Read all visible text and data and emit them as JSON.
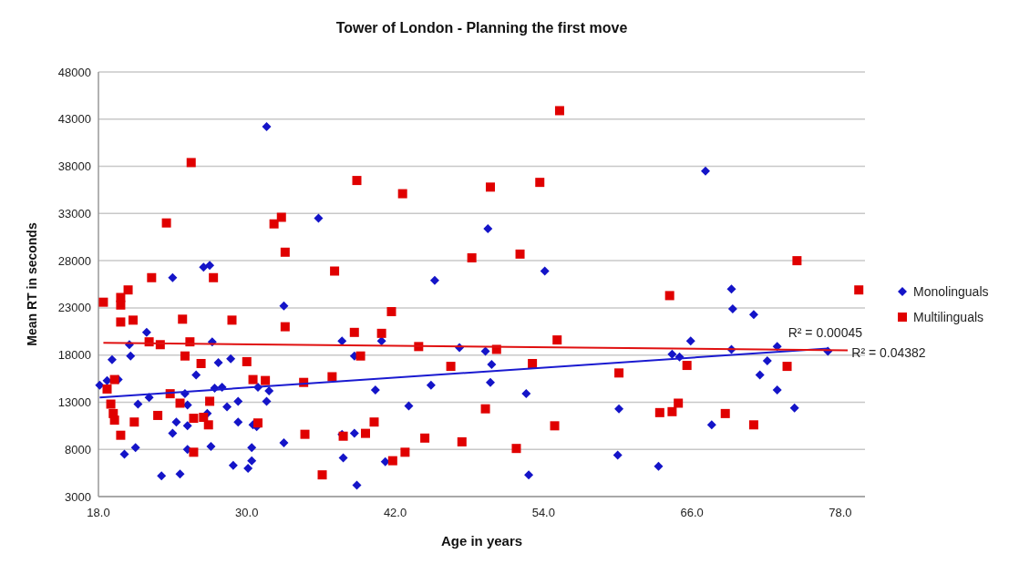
{
  "chart_data": {
    "type": "scatter",
    "title": "Tower of London - Planning the first move",
    "xlabel": "Age in years",
    "ylabel": "Mean RT in seconds",
    "xlim": [
      18,
      80
    ],
    "xticks": [
      {
        "value": 18,
        "label": "18.0"
      },
      {
        "value": 30,
        "label": "30.0"
      },
      {
        "value": 42,
        "label": "42.0"
      },
      {
        "value": 54,
        "label": "54.0"
      },
      {
        "value": 66,
        "label": "66.0"
      },
      {
        "value": 78,
        "label": "78.0"
      }
    ],
    "ylim": [
      3000,
      48000
    ],
    "yticks": [
      3000,
      8000,
      13000,
      18000,
      23000,
      28000,
      33000,
      38000,
      43000,
      48000
    ],
    "grid": "y",
    "legend": "right",
    "annotations": [
      "R² = 0.00045",
      "R² = 0.04382"
    ],
    "series": [
      {
        "name": "Monolinguals",
        "color": "#1414c8",
        "marker": "diamond",
        "x": [
          24.0,
          33.0,
          21.9,
          20.5,
          27.2,
          20.6,
          19.1,
          27.7,
          28.7,
          25.9,
          18.1,
          18.7,
          19.6,
          27.4,
          28.0,
          30.9,
          31.8,
          25.0,
          22.1,
          21.2,
          25.2,
          28.4,
          29.3,
          31.6,
          26.8,
          24.3,
          29.3,
          25.2,
          30.5,
          30.8,
          24.0,
          33.0,
          21.0,
          20.1,
          25.2,
          27.1,
          30.4,
          30.4,
          28.9,
          30.1,
          23.1,
          24.6,
          37.7,
          38.7,
          38.7,
          37.7,
          37.8,
          38.9,
          31.6,
          35.8,
          26.5,
          27.0,
          49.5,
          45.2,
          54.1,
          40.9,
          47.2,
          49.3,
          49.8,
          49.7,
          44.9,
          40.4,
          52.6,
          43.1,
          60.1,
          41.2,
          52.8,
          60.0,
          67.1,
          69.2,
          69.3,
          71.0,
          65.9,
          64.4,
          65.0,
          69.2,
          72.9,
          72.1,
          77.0,
          71.5,
          72.9,
          74.3,
          67.6,
          63.3
        ],
        "values": [
          26200,
          23200,
          20400,
          19100,
          19400,
          17900,
          17500,
          17200,
          17600,
          15900,
          14800,
          15300,
          15400,
          14500,
          14600,
          14600,
          14200,
          13900,
          13500,
          12800,
          12700,
          12500,
          13100,
          13100,
          11800,
          10900,
          10900,
          10500,
          10600,
          10400,
          9700,
          8700,
          8200,
          7500,
          8000,
          8300,
          8200,
          6800,
          6300,
          6000,
          5200,
          5400,
          19500,
          17900,
          9700,
          9600,
          7100,
          4200,
          42200,
          32500,
          27300,
          27500,
          31400,
          25900,
          26900,
          19500,
          18800,
          18400,
          17000,
          15100,
          14800,
          14300,
          13900,
          12600,
          12300,
          6700,
          5300,
          7400,
          37500,
          25000,
          22900,
          22300,
          19500,
          18100,
          17800,
          18600,
          18900,
          17400,
          18400,
          15900,
          14300,
          12400,
          10600,
          6200
        ]
      },
      {
        "name": "Multilinguals",
        "color": "#e00000",
        "marker": "square",
        "x": [
          25.5,
          38.9,
          23.5,
          32.8,
          32.2,
          33.1,
          37.1,
          22.3,
          27.3,
          18.4,
          20.4,
          19.8,
          19.8,
          19.8,
          20.8,
          24.8,
          28.8,
          33.1,
          22.1,
          23.0,
          25.4,
          38.7,
          39.2,
          25.0,
          26.3,
          30.0,
          19.3,
          18.7,
          30.5,
          31.5,
          34.6,
          36.9,
          23.8,
          19.0,
          24.6,
          27.0,
          19.2,
          19.3,
          22.8,
          25.7,
          26.5,
          26.9,
          20.9,
          30.9,
          19.8,
          34.7,
          37.8,
          25.7,
          36.1,
          55.3,
          42.6,
          49.7,
          53.7,
          48.2,
          52.1,
          41.7,
          40.9,
          43.9,
          50.2,
          55.1,
          46.5,
          53.1,
          60.1,
          49.3,
          40.3,
          39.6,
          54.9,
          44.4,
          47.4,
          42.8,
          41.8,
          51.8,
          74.5,
          79.5,
          64.2,
          65.6,
          73.7,
          63.4,
          64.4,
          64.9,
          68.7,
          71.0
        ],
        "values": [
          38400,
          36500,
          32000,
          32600,
          31900,
          28900,
          26900,
          26200,
          26200,
          23600,
          24900,
          24100,
          23300,
          21500,
          21700,
          21800,
          21700,
          21000,
          19400,
          19100,
          19400,
          20400,
          17900,
          17900,
          17100,
          17300,
          15400,
          14400,
          15400,
          15300,
          15100,
          15700,
          13900,
          12800,
          12900,
          13100,
          11800,
          11100,
          11600,
          11300,
          11400,
          10600,
          10900,
          10800,
          9500,
          9600,
          9400,
          7700,
          5300,
          43900,
          35100,
          35800,
          36300,
          28300,
          28700,
          22600,
          20300,
          18900,
          18600,
          19600,
          16800,
          17100,
          16100,
          12300,
          10900,
          9700,
          10500,
          9200,
          8800,
          7700,
          6800,
          8100,
          28000,
          24900,
          24300,
          16900,
          16800,
          11900,
          12000,
          12900,
          11800,
          10600
        ]
      },
      {
        "type": "line",
        "color": "#1a1ad0",
        "marker": "none",
        "x": [
          18.1,
          77.0
        ],
        "values": [
          13500,
          18700
        ]
      },
      {
        "type": "line",
        "color": "#e01010",
        "marker": "none",
        "x": [
          18.4,
          78.6
        ],
        "values": [
          19300,
          18500
        ]
      }
    ]
  }
}
